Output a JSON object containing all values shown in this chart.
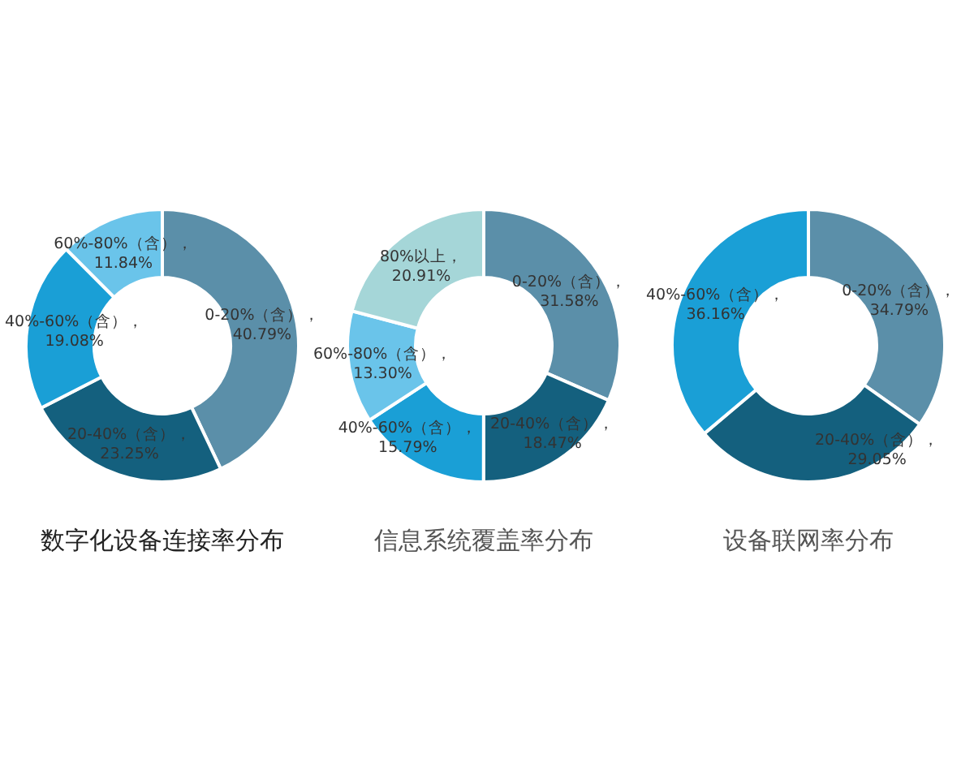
{
  "chart_data": [
    {
      "type": "donut",
      "title": "数字化设备连接率分布",
      "categories": [
        "0-20%（含）",
        "20-40%（含）",
        "40%-60%（含）",
        "60%-80%（含）"
      ],
      "values": [
        40.79,
        23.25,
        19.08,
        11.84
      ],
      "colors": [
        "#5b8fa9",
        "#14607e",
        "#1a9fd6",
        "#6ac4ea"
      ],
      "value_labels": [
        "，40.79%",
        "，23.25%",
        "，19.08%",
        "，11.84%"
      ]
    },
    {
      "type": "donut",
      "title": "信息系统覆盖率分布",
      "categories": [
        "0-20%（含）",
        "20-40%（含）",
        "40%-60%（含）",
        "60%-80%（含）",
        "80%以上"
      ],
      "values": [
        31.58,
        18.47,
        15.79,
        13.3,
        20.91
      ],
      "colors": [
        "#5b8fa9",
        "#14607e",
        "#1a9fd6",
        "#6ac4ea",
        "#a5d6d8"
      ],
      "value_labels": [
        "，31.58%",
        "，18.47%",
        "，15.79%",
        "，13.30%",
        "，20.91%"
      ]
    },
    {
      "type": "donut",
      "title": "设备联网率分布",
      "categories": [
        "0-20%（含）",
        "20-40%（含）",
        "40%-60%（含）"
      ],
      "values": [
        34.79,
        29.05,
        36.16
      ],
      "colors": [
        "#5b8fa9",
        "#14607e",
        "#1a9fd6"
      ],
      "value_labels": [
        "，34.79%",
        "，29.05%",
        "，36.16%"
      ]
    }
  ]
}
